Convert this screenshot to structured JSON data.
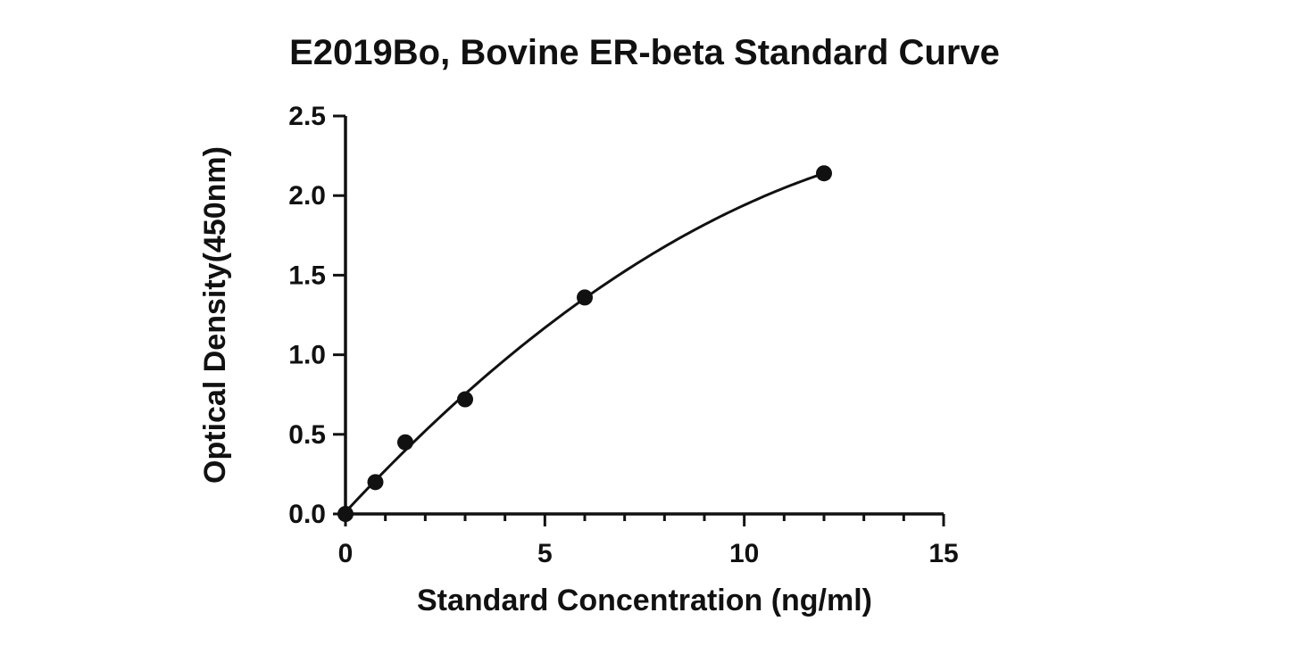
{
  "chart_data": {
    "type": "scatter",
    "title": "E2019Bo, Bovine ER-beta Standard Curve",
    "xlabel": "Standard Concentration (ng/ml)",
    "ylabel": "Optical Density(450nm)",
    "xlim": [
      0,
      15
    ],
    "ylim": [
      0,
      2.5
    ],
    "x_ticks": [
      "0",
      "5",
      "10",
      "15"
    ],
    "y_ticks": [
      "0.0",
      "0.5",
      "1.0",
      "1.5",
      "2.0",
      "2.5"
    ],
    "x_minor_step": 1,
    "y_minor_step": 0.5,
    "grid": false,
    "marker_color": "#111111",
    "series": [
      {
        "points": [
          {
            "x": 0,
            "y": 0.0
          },
          {
            "x": 0.75,
            "y": 0.2
          },
          {
            "x": 1.5,
            "y": 0.45
          },
          {
            "x": 3,
            "y": 0.72
          },
          {
            "x": 6,
            "y": 1.36
          },
          {
            "x": 12,
            "y": 2.14
          }
        ],
        "fit_curve": true
      }
    ]
  }
}
